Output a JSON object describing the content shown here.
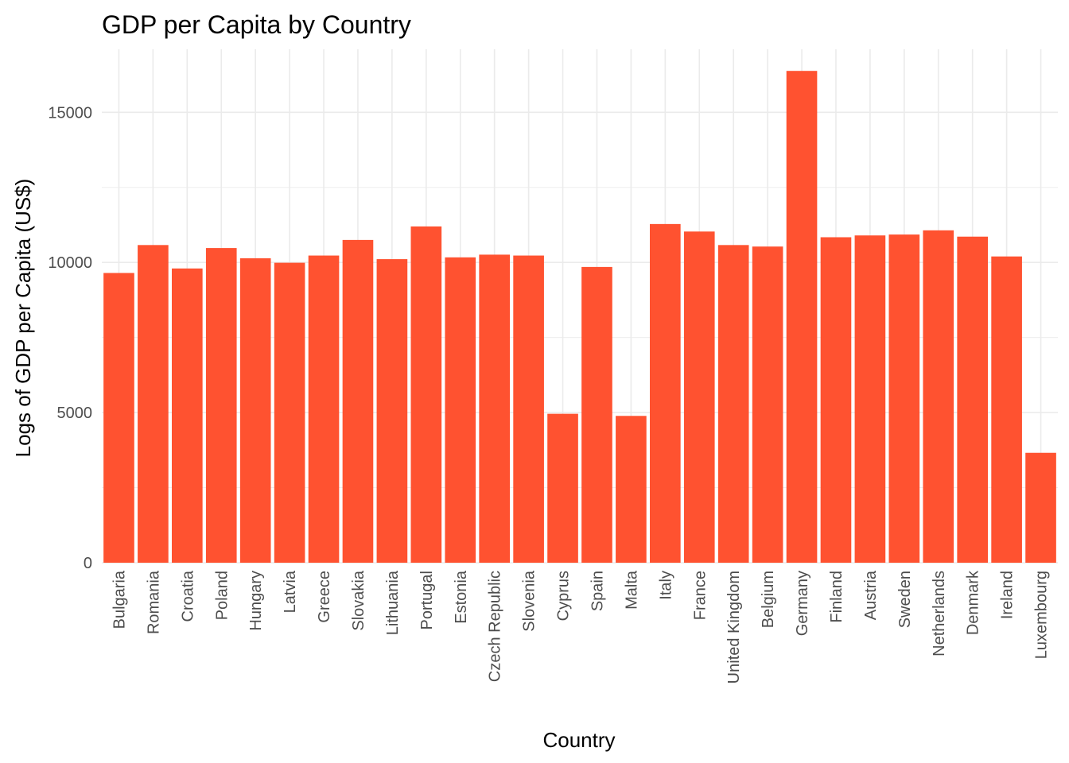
{
  "chart_data": {
    "type": "bar",
    "title": "GDP per Capita by Country",
    "xlabel": "Country",
    "ylabel": "Logs of GDP per Capita (US$)",
    "categories": [
      "Bulgaria",
      "Romania",
      "Croatia",
      "Poland",
      "Hungary",
      "Latvia",
      "Greece",
      "Slovakia",
      "Lithuania",
      "Portugal",
      "Estonia",
      "Czech Republic",
      "Slovenia",
      "Cyprus",
      "Spain",
      "Malta",
      "Italy",
      "France",
      "United Kingdom",
      "Belgium",
      "Germany",
      "Finland",
      "Austria",
      "Sweden",
      "Netherlands",
      "Denmark",
      "Ireland",
      "Luxembourg"
    ],
    "values": [
      9650,
      10580,
      9800,
      10480,
      10140,
      9990,
      10230,
      10750,
      10110,
      11200,
      10170,
      10260,
      10230,
      4960,
      9850,
      4890,
      11280,
      11030,
      10580,
      10530,
      16380,
      10840,
      10900,
      10930,
      11070,
      10860,
      10200,
      3660
    ],
    "ylim": [
      0,
      17100
    ],
    "yticks": [
      0,
      5000,
      10000,
      15000
    ],
    "ytick_labels": [
      "0",
      "5000",
      "10000",
      "15000"
    ],
    "grid": true,
    "bar_color": "#FF5230",
    "grid_color": "#EBEBEB"
  }
}
